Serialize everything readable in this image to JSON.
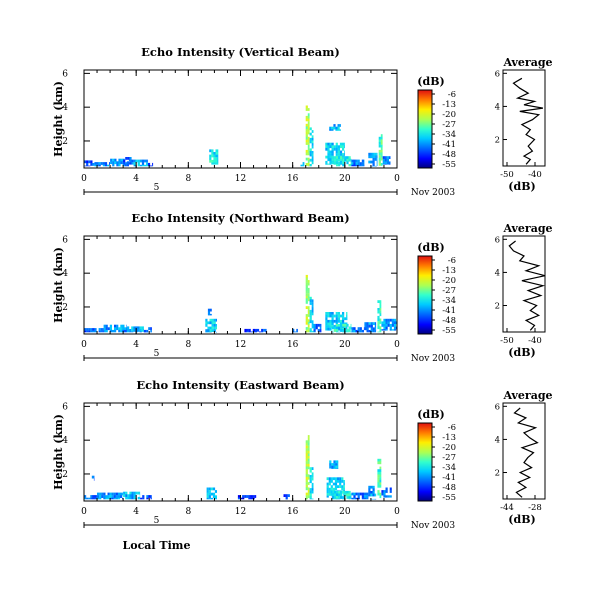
{
  "chart_data": [
    {
      "type": "heatmap",
      "title": "Echo Intensity (Vertical Beam)",
      "ylabel": "Height (km)",
      "xlabel": "",
      "x_ticks": [
        "0",
        "4",
        "8",
        "12",
        "16",
        "20",
        "0"
      ],
      "y_ticks": [
        "2",
        "4",
        "6"
      ],
      "xlim": [
        0,
        24
      ],
      "ylim": [
        0.4,
        6.2
      ],
      "date_mark": "5",
      "date_label": "Nov 2003",
      "colorbar": {
        "unit": "(dB)",
        "ticks": [
          "-6",
          "-13",
          "-20",
          "-27",
          "-34",
          "-41",
          "-48",
          "-55"
        ],
        "range": [
          -56,
          -5
        ]
      },
      "echoes": [
        {
          "t0": 0.0,
          "t1": 0.8,
          "h0": 0.5,
          "h1": 0.85,
          "db": -45
        },
        {
          "t0": 0.8,
          "t1": 2.0,
          "h0": 0.5,
          "h1": 0.75,
          "db": -42
        },
        {
          "t0": 2.0,
          "t1": 3.5,
          "h0": 0.5,
          "h1": 0.95,
          "db": -40
        },
        {
          "t0": 3.0,
          "t1": 3.8,
          "h0": 0.6,
          "h1": 1.05,
          "db": -44
        },
        {
          "t0": 3.8,
          "t1": 4.9,
          "h0": 0.5,
          "h1": 0.9,
          "db": -38
        },
        {
          "t0": 4.9,
          "t1": 5.3,
          "h0": 0.5,
          "h1": 0.7,
          "db": -44
        },
        {
          "t0": 9.6,
          "t1": 10.3,
          "h0": 0.6,
          "h1": 1.5,
          "db": -34
        },
        {
          "t0": 16.6,
          "t1": 16.9,
          "h0": 0.5,
          "h1": 0.75,
          "db": -40
        },
        {
          "t0": 17.0,
          "t1": 17.3,
          "h0": 0.5,
          "h1": 4.1,
          "db": -24
        },
        {
          "t0": 17.3,
          "t1": 17.6,
          "h0": 0.5,
          "h1": 2.8,
          "db": -35
        },
        {
          "t0": 18.5,
          "t1": 20.0,
          "h0": 0.6,
          "h1": 1.9,
          "db": -36
        },
        {
          "t0": 18.8,
          "t1": 19.7,
          "h0": 2.6,
          "h1": 3.0,
          "db": -38
        },
        {
          "t0": 19.0,
          "t1": 20.5,
          "h0": 0.5,
          "h1": 1.1,
          "db": -33
        },
        {
          "t0": 20.5,
          "t1": 21.5,
          "h0": 0.5,
          "h1": 0.9,
          "db": -42
        },
        {
          "t0": 21.8,
          "t1": 22.5,
          "h0": 0.5,
          "h1": 1.3,
          "db": -40
        },
        {
          "t0": 22.6,
          "t1": 22.9,
          "h0": 0.5,
          "h1": 2.4,
          "db": -30
        },
        {
          "t0": 22.9,
          "t1": 23.5,
          "h0": 0.6,
          "h1": 1.1,
          "db": -43
        }
      ],
      "average_profile": {
        "title": "Average",
        "xlabel": "(dB)",
        "x_ticks": [
          "-50",
          "-40"
        ],
        "y_ticks": [
          "2",
          "4",
          "6"
        ],
        "xlim": [
          -55,
          -35
        ],
        "ylim": [
          0.4,
          6.2
        ],
        "height": [
          0.5,
          0.8,
          1.0,
          1.3,
          1.6,
          2.0,
          2.3,
          2.6,
          2.9,
          3.2,
          3.5,
          3.7,
          3.9,
          4.1,
          4.3,
          4.5,
          4.8,
          5.1,
          5.4,
          5.7
        ],
        "db": [
          -44,
          -42,
          -45,
          -41,
          -43,
          -40,
          -44,
          -42,
          -46,
          -41,
          -38,
          -47,
          -36,
          -45,
          -40,
          -48,
          -43,
          -47,
          -50,
          -46
        ]
      }
    },
    {
      "type": "heatmap",
      "title": "Echo Intensity (Northward Beam)",
      "ylabel": "Height (km)",
      "xlabel": "",
      "x_ticks": [
        "0",
        "4",
        "8",
        "12",
        "16",
        "20",
        "0"
      ],
      "y_ticks": [
        "2",
        "4",
        "6"
      ],
      "xlim": [
        0,
        24
      ],
      "ylim": [
        0.4,
        6.2
      ],
      "date_mark": "5",
      "date_label": "Nov 2003",
      "colorbar": {
        "unit": "(dB)",
        "ticks": [
          "-6",
          "-13",
          "-20",
          "-27",
          "-34",
          "-41",
          "-48",
          "-55"
        ],
        "range": [
          -56,
          -5
        ]
      },
      "echoes": [
        {
          "t0": 0.0,
          "t1": 1.5,
          "h0": 0.5,
          "h1": 0.75,
          "db": -44
        },
        {
          "t0": 1.5,
          "t1": 3.3,
          "h0": 0.5,
          "h1": 0.95,
          "db": -40
        },
        {
          "t0": 3.3,
          "t1": 4.6,
          "h0": 0.5,
          "h1": 0.85,
          "db": -38
        },
        {
          "t0": 4.6,
          "t1": 5.2,
          "h0": 0.5,
          "h1": 0.8,
          "db": -43
        },
        {
          "t0": 9.3,
          "t1": 10.2,
          "h0": 0.5,
          "h1": 1.3,
          "db": -36
        },
        {
          "t0": 9.5,
          "t1": 9.8,
          "h0": 1.5,
          "h1": 1.9,
          "db": -40
        },
        {
          "t0": 12.3,
          "t1": 14.0,
          "h0": 0.5,
          "h1": 0.7,
          "db": -46
        },
        {
          "t0": 15.8,
          "t1": 16.4,
          "h0": 0.5,
          "h1": 0.7,
          "db": -44
        },
        {
          "t0": 17.0,
          "t1": 17.3,
          "h0": 0.5,
          "h1": 3.9,
          "db": -24
        },
        {
          "t0": 17.3,
          "t1": 17.6,
          "h0": 0.5,
          "h1": 2.6,
          "db": -35
        },
        {
          "t0": 17.6,
          "t1": 18.2,
          "h0": 0.5,
          "h1": 1.0,
          "db": -42
        },
        {
          "t0": 18.5,
          "t1": 20.2,
          "h0": 0.6,
          "h1": 1.7,
          "db": -36
        },
        {
          "t0": 19.0,
          "t1": 20.5,
          "h0": 0.5,
          "h1": 1.0,
          "db": -33
        },
        {
          "t0": 20.5,
          "t1": 21.5,
          "h0": 0.5,
          "h1": 0.8,
          "db": -42
        },
        {
          "t0": 21.5,
          "t1": 22.4,
          "h0": 0.5,
          "h1": 1.1,
          "db": -40
        },
        {
          "t0": 22.5,
          "t1": 22.8,
          "h0": 0.5,
          "h1": 2.4,
          "db": -31
        },
        {
          "t0": 22.8,
          "t1": 24.0,
          "h0": 0.6,
          "h1": 1.3,
          "db": -40
        }
      ],
      "average_profile": {
        "title": "Average",
        "xlabel": "(dB)",
        "x_ticks": [
          "-50",
          "-40"
        ],
        "y_ticks": [
          "2",
          "4",
          "6"
        ],
        "xlim": [
          -55,
          -35
        ],
        "ylim": [
          0.4,
          6.2
        ],
        "height": [
          0.5,
          0.8,
          1.1,
          1.4,
          1.7,
          2.0,
          2.3,
          2.6,
          2.9,
          3.2,
          3.5,
          3.8,
          4.1,
          4.4,
          4.7,
          5.0,
          5.3,
          5.6,
          5.9
        ],
        "db": [
          -42,
          -40,
          -44,
          -38,
          -42,
          -39,
          -45,
          -37,
          -43,
          -36,
          -46,
          -35,
          -44,
          -38,
          -47,
          -45,
          -50,
          -52,
          -49
        ]
      }
    },
    {
      "type": "heatmap",
      "title": "Echo Intensity (Eastward Beam)",
      "ylabel": "Height (km)",
      "xlabel": "Local Time",
      "x_ticks": [
        "0",
        "4",
        "8",
        "12",
        "16",
        "20",
        "0"
      ],
      "y_ticks": [
        "2",
        "4",
        "6"
      ],
      "xlim": [
        0,
        24
      ],
      "ylim": [
        0.4,
        6.2
      ],
      "date_mark": "5",
      "date_label": "Nov 2003",
      "colorbar": {
        "unit": "(dB)",
        "ticks": [
          "-6",
          "-13",
          "-20",
          "-27",
          "-34",
          "-41",
          "-48",
          "-55"
        ],
        "range": [
          -56,
          -5
        ]
      },
      "echoes": [
        {
          "t0": 0.0,
          "t1": 1.0,
          "h0": 0.5,
          "h1": 0.75,
          "db": -44
        },
        {
          "t0": 0.6,
          "t1": 0.8,
          "h0": 1.6,
          "h1": 1.9,
          "db": -42
        },
        {
          "t0": 1.0,
          "t1": 3.0,
          "h0": 0.5,
          "h1": 0.9,
          "db": -40
        },
        {
          "t0": 3.0,
          "t1": 4.3,
          "h0": 0.5,
          "h1": 0.95,
          "db": -38
        },
        {
          "t0": 4.3,
          "t1": 5.2,
          "h0": 0.5,
          "h1": 0.75,
          "db": -44
        },
        {
          "t0": 9.4,
          "t1": 10.2,
          "h0": 0.5,
          "h1": 1.2,
          "db": -36
        },
        {
          "t0": 11.8,
          "t1": 13.2,
          "h0": 0.5,
          "h1": 0.75,
          "db": -48
        },
        {
          "t0": 15.3,
          "t1": 15.9,
          "h0": 0.5,
          "h1": 0.8,
          "db": -45
        },
        {
          "t0": 17.0,
          "t1": 17.3,
          "h0": 0.5,
          "h1": 4.3,
          "db": -24
        },
        {
          "t0": 17.3,
          "t1": 17.6,
          "h0": 0.5,
          "h1": 2.4,
          "db": -35
        },
        {
          "t0": 18.6,
          "t1": 20.0,
          "h0": 0.6,
          "h1": 1.8,
          "db": -36
        },
        {
          "t0": 18.8,
          "t1": 19.5,
          "h0": 2.3,
          "h1": 2.8,
          "db": -38
        },
        {
          "t0": 19.0,
          "t1": 20.5,
          "h0": 0.5,
          "h1": 1.0,
          "db": -34
        },
        {
          "t0": 20.5,
          "t1": 21.8,
          "h0": 0.5,
          "h1": 0.9,
          "db": -42
        },
        {
          "t0": 21.8,
          "t1": 22.4,
          "h0": 0.5,
          "h1": 1.3,
          "db": -40
        },
        {
          "t0": 22.5,
          "t1": 22.8,
          "h0": 0.5,
          "h1": 2.9,
          "db": -31
        },
        {
          "t0": 22.8,
          "t1": 23.6,
          "h0": 0.6,
          "h1": 1.2,
          "db": -43
        }
      ],
      "average_profile": {
        "title": "Average",
        "xlabel": "(dB)",
        "x_ticks": [
          "-44",
          "-28"
        ],
        "y_ticks": [
          "2",
          "4",
          "6"
        ],
        "xlim": [
          -48,
          -26
        ],
        "ylim": [
          0.4,
          6.2
        ],
        "height": [
          0.5,
          0.8,
          1.1,
          1.4,
          1.7,
          2.0,
          2.3,
          2.6,
          2.9,
          3.2,
          3.5,
          3.8,
          4.1,
          4.4,
          4.7,
          5.0,
          5.3,
          5.6,
          5.9
        ],
        "db": [
          -38,
          -41,
          -36,
          -40,
          -34,
          -39,
          -33,
          -37,
          -35,
          -32,
          -38,
          -30,
          -34,
          -37,
          -31,
          -40,
          -36,
          -42,
          -39
        ]
      }
    }
  ]
}
